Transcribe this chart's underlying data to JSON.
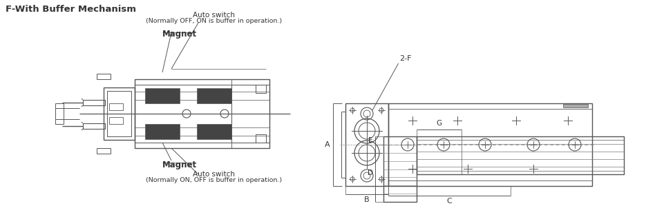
{
  "title": "F-With Buffer Mechanism",
  "bg_color": "#ffffff",
  "line_color": "#555555",
  "text_color": "#333333",
  "left_annotations": {
    "top_label": "Auto switch",
    "top_sublabel": "(Normally OFF, ON is buffer in operation.)",
    "magnet_top": "Magnet",
    "magnet_bottom": "Magnet",
    "bottom_label": "Auto switch",
    "bottom_sublabel": "(Normally ON, OFF is buffer in operation.)"
  },
  "right_annotations": {
    "label_2f": "2-F",
    "label_a": "A",
    "label_b": "B",
    "label_c": "C",
    "label_g": "G",
    "label_e": "E",
    "label_d": "D"
  }
}
